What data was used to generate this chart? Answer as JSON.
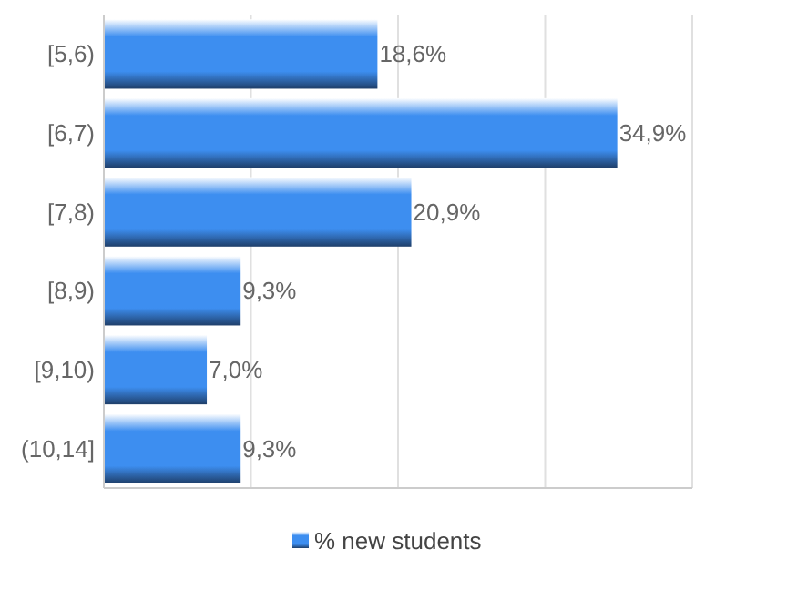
{
  "chart_data": {
    "type": "bar",
    "orientation": "horizontal",
    "categories": [
      "[5,6)",
      "[6,7)",
      "[7,8)",
      "[8,9)",
      "[9,10)",
      "(10,14]"
    ],
    "series": [
      {
        "name": "% new students",
        "color": "#3d8ef0",
        "values": [
          18.6,
          34.9,
          20.9,
          9.3,
          7.0,
          9.3
        ],
        "value_labels": [
          "18,6%",
          "34,9%",
          "20,9%",
          "9,3%",
          "7,0%",
          "9,3%"
        ]
      }
    ],
    "grid": "x",
    "tick_labels": "y",
    "legend": "bottom"
  }
}
